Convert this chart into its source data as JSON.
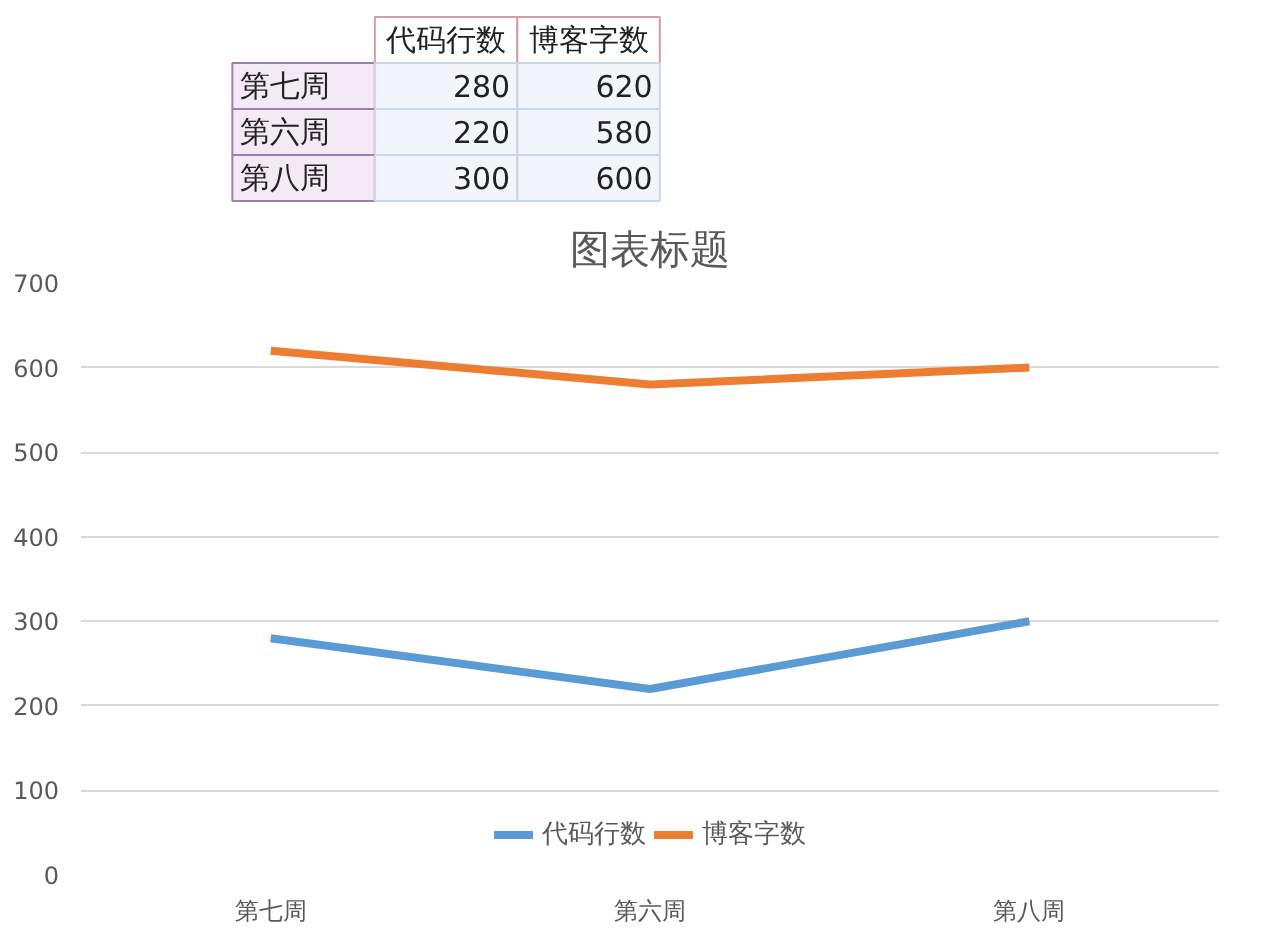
{
  "chart_data": [
    {
      "type": "other",
      "categories": [
        "第七周",
        "第六周",
        "第八周"
      ],
      "series": [
        {
          "name": "代码行数",
          "values": [
            280,
            220,
            300
          ]
        },
        {
          "name": "博客字数",
          "values": [
            620,
            580,
            600
          ]
        }
      ],
      "data_labels": true
    },
    {
      "type": "line",
      "title": "图表标题",
      "categories": [
        "第七周",
        "第六周",
        "第八周"
      ],
      "series": [
        {
          "name": "代码行数",
          "color": "#5b9bd5",
          "values": [
            280,
            220,
            300
          ]
        },
        {
          "name": "博客字数",
          "color": "#ed7d31",
          "values": [
            620,
            580,
            600
          ]
        }
      ],
      "ylim": [
        0,
        700
      ],
      "yticks": [
        0,
        100,
        200,
        300,
        400,
        500,
        600,
        700
      ],
      "grid": "y",
      "legend": "bottom",
      "marker": "none"
    }
  ]
}
